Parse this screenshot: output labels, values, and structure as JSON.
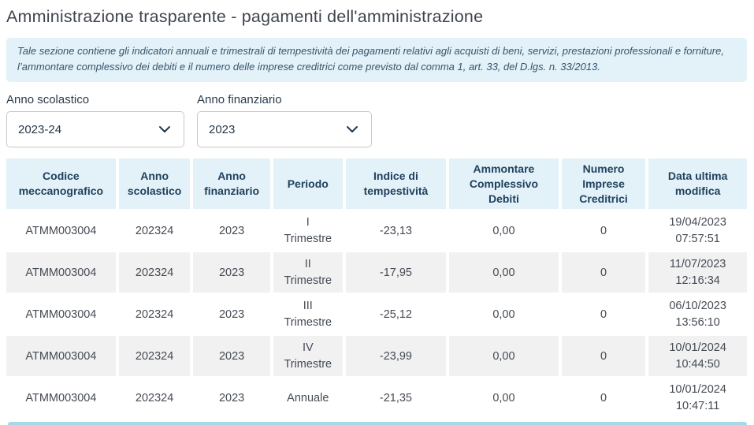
{
  "page": {
    "title": "Amministrazione trasparente - pagamenti dell'amministrazione",
    "info_text": "Tale sezione contiene gli indicatori annuali e trimestrali di tempestività dei pagamenti relativi agli acquisti di beni, servizi, prestazioni professionali e forniture, l’ammontare complessivo dei debiti e il numero delle imprese creditrici come previsto dal comma 1, art. 33, del D.lgs. n. 33/2013."
  },
  "filters": {
    "anno_scolastico": {
      "label": "Anno scolastico",
      "value": "2023-24"
    },
    "anno_finanziario": {
      "label": "Anno finanziario",
      "value": "2023"
    }
  },
  "table": {
    "columns": [
      "Codice\nmeccanografico",
      "Anno\nscolastico",
      "Anno\nfinanziario",
      "Periodo",
      "Indice di\ntempestività",
      "Ammontare\nComplessivo Debiti",
      "Numero\nImprese\nCreditrici",
      "Data ultima\nmodifica"
    ],
    "rows": [
      [
        "ATMM003004",
        "202324",
        "2023",
        "I\nTrimestre",
        "-23,13",
        "0,00",
        "0",
        "19/04/2023\n07:57:51"
      ],
      [
        "ATMM003004",
        "202324",
        "2023",
        "II\nTrimestre",
        "-17,95",
        "0,00",
        "0",
        "11/07/2023\n12:16:34"
      ],
      [
        "ATMM003004",
        "202324",
        "2023",
        "III\nTrimestre",
        "-25,12",
        "0,00",
        "0",
        "06/10/2023\n13:56:10"
      ],
      [
        "ATMM003004",
        "202324",
        "2023",
        "IV\nTrimestre",
        "-23,99",
        "0,00",
        "0",
        "10/01/2024\n10:44:50"
      ],
      [
        "ATMM003004",
        "202324",
        "2023",
        "Annuale",
        "-21,35",
        "0,00",
        "0",
        "10/01/2024\n10:47:11"
      ]
    ]
  },
  "colors": {
    "light_blue_panel": "#e3f1f8",
    "header_text": "#20425e",
    "row_alt_gray": "#f1f1f1",
    "scrollbar_blue": "#a7d9e8"
  }
}
